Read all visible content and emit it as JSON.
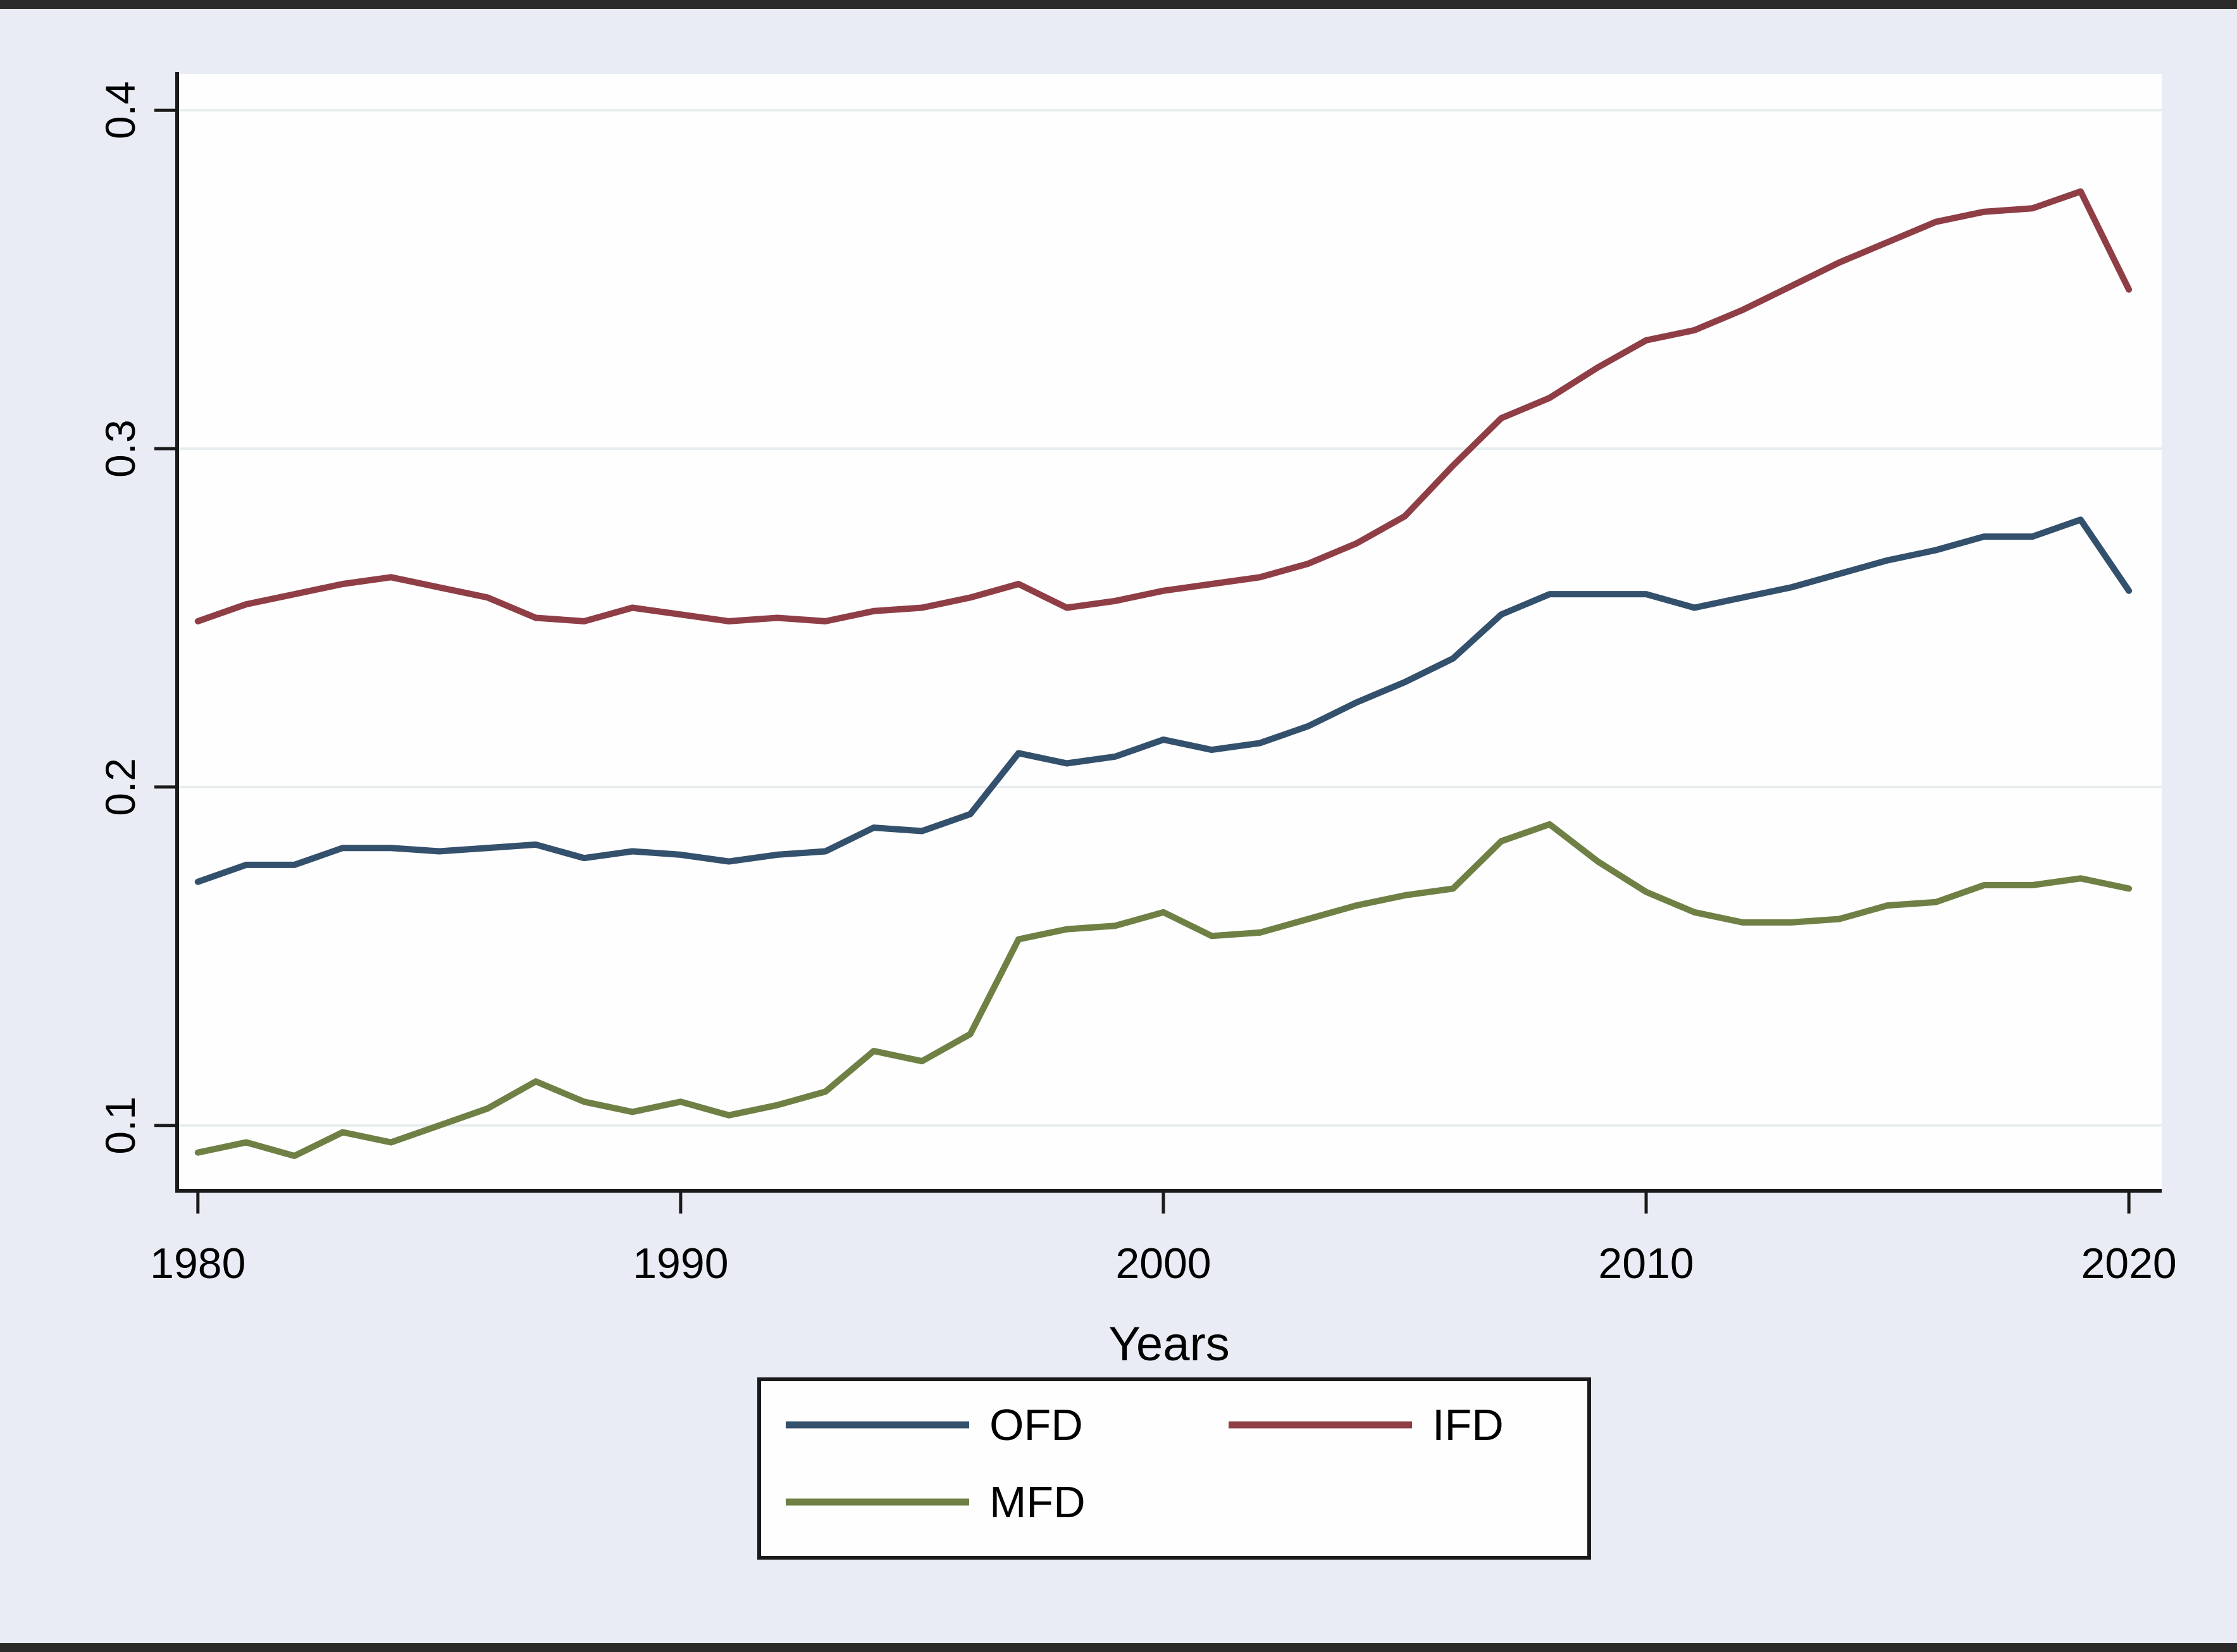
{
  "figure": {
    "background": "#e9ecf4",
    "plot_background": "#fffefe",
    "edge_strip_color": "#2a2a2a"
  },
  "chart_data": {
    "type": "line",
    "title": "",
    "xlabel": "Years",
    "ylabel": "",
    "x": [
      1980,
      1981,
      1982,
      1983,
      1984,
      1985,
      1986,
      1987,
      1988,
      1989,
      1990,
      1991,
      1992,
      1993,
      1994,
      1995,
      1996,
      1997,
      1998,
      1999,
      2000,
      2001,
      2002,
      2003,
      2004,
      2005,
      2006,
      2007,
      2008,
      2009,
      2010,
      2011,
      2012,
      2013,
      2014,
      2015,
      2016,
      2017,
      2018,
      2019,
      2020
    ],
    "series": [
      {
        "name": "OFD",
        "color": "#33506c",
        "values": [
          0.172,
          0.177,
          0.177,
          0.182,
          0.182,
          0.181,
          0.182,
          0.183,
          0.179,
          0.181,
          0.18,
          0.178,
          0.18,
          0.181,
          0.188,
          0.187,
          0.192,
          0.21,
          0.207,
          0.209,
          0.214,
          0.211,
          0.213,
          0.218,
          0.225,
          0.231,
          0.238,
          0.251,
          0.257,
          0.257,
          0.257,
          0.253,
          0.256,
          0.259,
          0.263,
          0.267,
          0.27,
          0.274,
          0.274,
          0.279,
          0.258
        ]
      },
      {
        "name": "IFD",
        "color": "#8f3e46",
        "values": [
          0.249,
          0.254,
          0.257,
          0.26,
          0.262,
          0.259,
          0.256,
          0.25,
          0.249,
          0.253,
          0.251,
          0.249,
          0.25,
          0.249,
          0.252,
          0.253,
          0.256,
          0.26,
          0.253,
          0.255,
          0.258,
          0.26,
          0.262,
          0.266,
          0.272,
          0.28,
          0.295,
          0.309,
          0.315,
          0.324,
          0.332,
          0.335,
          0.341,
          0.348,
          0.355,
          0.361,
          0.367,
          0.37,
          0.371,
          0.376,
          0.347
        ]
      },
      {
        "name": "MFD",
        "color": "#6f8045",
        "values": [
          0.092,
          0.095,
          0.091,
          0.098,
          0.095,
          0.1,
          0.105,
          0.113,
          0.107,
          0.104,
          0.107,
          0.103,
          0.106,
          0.11,
          0.122,
          0.119,
          0.127,
          0.155,
          0.158,
          0.159,
          0.163,
          0.156,
          0.157,
          0.161,
          0.165,
          0.168,
          0.17,
          0.184,
          0.189,
          0.178,
          0.169,
          0.163,
          0.16,
          0.16,
          0.161,
          0.165,
          0.166,
          0.171,
          0.171,
          0.173,
          0.17
        ]
      }
    ],
    "xlim": [
      1979.57,
      2020.68
    ],
    "ylim": [
      0.0807,
      0.4107
    ],
    "x_ticks": [
      1980,
      1990,
      2000,
      2010,
      2020
    ],
    "x_tick_labels": [
      "1980",
      "1990",
      "2000",
      "2010",
      "2020"
    ],
    "y_ticks": [
      0.1,
      0.2,
      0.3,
      0.4
    ],
    "y_tick_labels": [
      "0.1",
      "0.2",
      "0.3",
      "0.4"
    ],
    "grid": "horizontal",
    "gridline_color": "#e7edee",
    "axis_color": "#1a1a1a",
    "legend": {
      "position": "bottom-center",
      "columns": 2,
      "entries": [
        "OFD",
        "IFD",
        "MFD"
      ],
      "border_color": "#1a1a1a",
      "background": "#fffefe"
    }
  }
}
